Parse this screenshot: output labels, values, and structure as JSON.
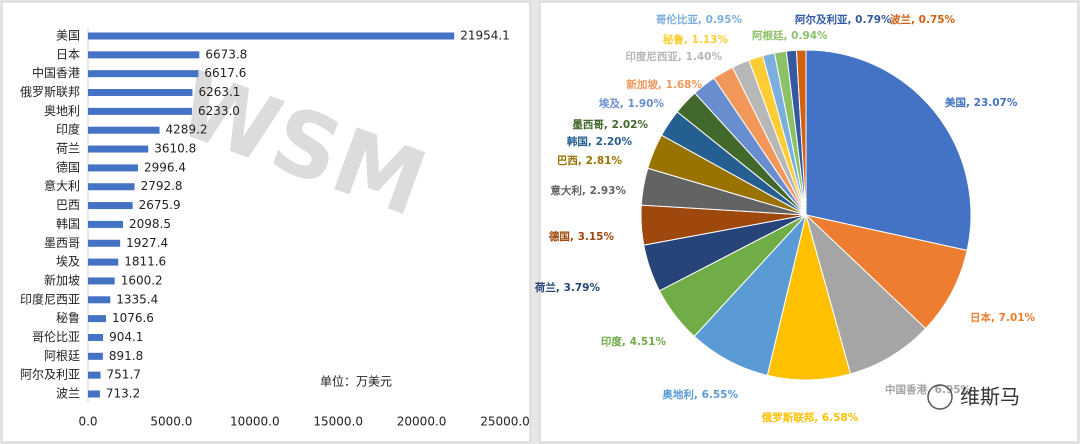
{
  "chart_data": [
    {
      "type": "barh",
      "categories": [
        "美国",
        "日本",
        "中国香港",
        "俄罗斯联邦",
        "奥地利",
        "印度",
        "荷兰",
        "德国",
        "意大利",
        "巴西",
        "韩国",
        "墨西哥",
        "埃及",
        "新加坡",
        "印度尼西亚",
        "秘鲁",
        "哥伦比亚",
        "阿根廷",
        "阿尔及利亚",
        "波兰"
      ],
      "values": [
        21954.1,
        6673.8,
        6617.6,
        6263.1,
        6233.0,
        4289.2,
        3610.8,
        2996.4,
        2792.8,
        2675.9,
        2098.5,
        1927.4,
        1811.6,
        1600.2,
        1335.4,
        1076.6,
        904.1,
        891.8,
        751.7,
        713.2
      ],
      "value_labels": [
        "21954.1",
        "6673.8",
        "6617.6",
        "6263.1",
        "6233.0",
        "4289.2",
        "3610.8",
        "2996.4",
        "2792.8",
        "2675.9",
        "2098.5",
        "1927.4",
        "1811.6",
        "1600.2",
        "1335.4",
        "1076.6",
        "904.1",
        "891.8",
        "751.7",
        "713.2"
      ],
      "color": "#4472c4",
      "xlim": [
        0,
        25000
      ],
      "xticks": [
        {
          "value": 0,
          "label": "0.0"
        },
        {
          "value": 5000,
          "label": "5000.0"
        },
        {
          "value": 10000,
          "label": "10000.0"
        },
        {
          "value": 15000,
          "label": "15000.0"
        },
        {
          "value": 20000,
          "label": "20000.0"
        },
        {
          "value": 25000,
          "label": "25000.0"
        }
      ],
      "annotation": "单位：万美元",
      "watermark": "WSM"
    },
    {
      "type": "pie",
      "labels": [
        "美国, 23.07%",
        "日本, 7.01%",
        "中国香港, 6.95%",
        "俄罗斯联邦, 6.58%",
        "奥地利, 6.55%",
        "印度, 4.51%",
        "荷兰, 3.79%",
        "德国, 3.15%",
        "意大利, 2.93%",
        "巴西, 2.81%",
        "韩国, 2.20%",
        "墨西哥, 2.02%",
        "埃及, 1.90%",
        "新加坡, 1.68%",
        "印度尼西亚, 1.40%",
        "秘鲁, 1.13%",
        "哥伦比亚, 0.95%",
        "阿根廷, 0.94%",
        "阿尔及利亚, 0.79%",
        "波兰, 0.75%"
      ],
      "values": [
        23.07,
        7.01,
        6.95,
        6.58,
        6.55,
        4.51,
        3.79,
        3.15,
        2.93,
        2.81,
        2.2,
        2.02,
        1.9,
        1.68,
        1.4,
        1.13,
        0.95,
        0.94,
        0.79,
        0.75
      ],
      "colors": [
        "#4472c4",
        "#ed7d31",
        "#a5a5a5",
        "#ffc000",
        "#5b9bd5",
        "#70ad47",
        "#264478",
        "#9e480e",
        "#636363",
        "#997300",
        "#255e91",
        "#43682b",
        "#698ed0",
        "#f1975a",
        "#b7b7b7",
        "#ffcd33",
        "#7cafdd",
        "#8cc168",
        "#335aa1",
        "#d26012"
      ],
      "logo": "维斯马"
    }
  ]
}
